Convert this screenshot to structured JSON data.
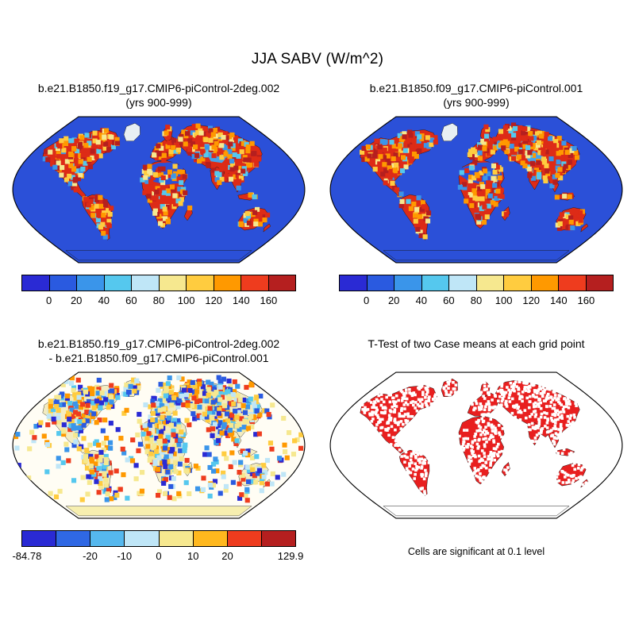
{
  "figure": {
    "title": "JJA SABV (W/m^2)"
  },
  "panels": {
    "top_left": {
      "title_line1": "b.e21.B1850.f19_g17.CMIP6-piControl-2deg.002",
      "title_line2": "(yrs 900-999)"
    },
    "top_right": {
      "title_line1": "b.e21.B1850.f09_g17.CMIP6-piControl.001",
      "title_line2": "(yrs 900-999)"
    },
    "bottom_left": {
      "title_line1": "b.e21.B1850.f19_g17.CMIP6-piControl-2deg.002",
      "title_line2": "- b.e21.B1850.f09_g17.CMIP6-piControl.001"
    },
    "bottom_right": {
      "title": "T-Test of two Case means at each grid point",
      "caption": "Cells are significant at 0.1 level"
    }
  },
  "colorbars": {
    "mean": {
      "segments": [
        "#2a2ad4",
        "#2a5ae0",
        "#3a95ea",
        "#55c8ee",
        "#bfe6f7",
        "#f6e88f",
        "#ffcc3f",
        "#ff9900",
        "#ee3c1e",
        "#b51f1f"
      ],
      "ticks": [
        {
          "label": "0",
          "pos": 0.1
        },
        {
          "label": "20",
          "pos": 0.2
        },
        {
          "label": "40",
          "pos": 0.3
        },
        {
          "label": "60",
          "pos": 0.4
        },
        {
          "label": "80",
          "pos": 0.5
        },
        {
          "label": "100",
          "pos": 0.6
        },
        {
          "label": "120",
          "pos": 0.7
        },
        {
          "label": "140",
          "pos": 0.8
        },
        {
          "label": "160",
          "pos": 0.9
        }
      ]
    },
    "diff": {
      "segments": [
        "#2a2ad4",
        "#2f68e4",
        "#55b8ee",
        "#bfe6f7",
        "#f6e88f",
        "#ffb81e",
        "#ee3c1e",
        "#b51f1f"
      ],
      "ticks": [
        {
          "label": "-84.78",
          "pos": 0.02
        },
        {
          "label": "-20",
          "pos": 0.25
        },
        {
          "label": "-10",
          "pos": 0.375
        },
        {
          "label": "0",
          "pos": 0.5
        },
        {
          "label": "10",
          "pos": 0.625
        },
        {
          "label": "20",
          "pos": 0.75
        },
        {
          "label": "129.9",
          "pos": 0.98
        }
      ]
    }
  },
  "map_styles": {
    "mean": {
      "ocean": "#2b50d8",
      "land": "#dd2b17",
      "coast": "#1a1a1a",
      "antarctica": "#2b50d8",
      "greenland": "#e8eff3",
      "overlays": {
        "sahara": "#2b50d8",
        "centralasia": "#46a4ea"
      },
      "noise": {
        "palette": [
          "#ffcc3f",
          "#ff9900",
          "#ff9900",
          "#f6e88f",
          "#b51f1f",
          "#b51f1f",
          "#55c8ee",
          "#3a95ea",
          "#dd2b17",
          "#dd2b17"
        ],
        "density": 1.1,
        "size": 6
      },
      "noise_exclude": [
        "antarctica",
        "greenland",
        "newzealand"
      ]
    },
    "diff": {
      "ocean": "#fffdf4",
      "land": "#f3ecc0",
      "coast": "#333333",
      "antarctica": "#f7efaf",
      "greenland": "#f3ecc0",
      "overlays": {},
      "noise": {
        "palette": [
          "#2a2ad4",
          "#2a5ae0",
          "#3a95ea",
          "#55c8ee",
          "#bfe6f7",
          "#ffcc3f",
          "#ff9900",
          "#ee3c1e",
          "#f6e88f",
          "#f6e88f"
        ],
        "density": 1.3,
        "size": 6,
        "ocean_density": 0.22
      },
      "noise_exclude": [
        "antarctica"
      ]
    },
    "ttest": {
      "ocean": "#ffffff",
      "land": "#e81f1f",
      "coast": "#111111",
      "antarctica": "#ffffff",
      "overlays": {},
      "speckle": {
        "color": "#ffffff",
        "density": 0.55,
        "size": 3.5
      },
      "noise_exclude": [
        "antarctica"
      ]
    }
  },
  "chart_data": [
    {
      "panel": "top_left",
      "type": "heatmap",
      "title": "b.e21.B1850.f19_g17.CMIP6-piControl-2deg.002",
      "subtitle": "(yrs 900-999)",
      "variable": "JJA SABV",
      "units": "W/m^2",
      "projection": "robinson",
      "colorbar_ticks": [
        0,
        20,
        40,
        60,
        80,
        100,
        120,
        140,
        160
      ],
      "pattern": "Oceans and Antarctica near 0 (blue); most land 100-160+ (orange/red); Sahara and parts of central Asia low (blue); Greenland near 0 (white)"
    },
    {
      "panel": "top_right",
      "type": "heatmap",
      "title": "b.e21.B1850.f09_g17.CMIP6-piControl.001",
      "subtitle": "(yrs 900-999)",
      "variable": "JJA SABV",
      "units": "W/m^2",
      "projection": "robinson",
      "colorbar_ticks": [
        0,
        20,
        40,
        60,
        80,
        100,
        120,
        140,
        160
      ],
      "pattern": "Same spatial pattern as top-left case: blue oceans, predominantly red/orange land, blue Sahara"
    },
    {
      "panel": "bottom_left",
      "type": "heatmap",
      "title": "b.e21.B1850.f19_g17.CMIP6-piControl-2deg.002 - b.e21.B1850.f09_g17.CMIP6-piControl.001",
      "variable": "JJA SABV difference",
      "units": "W/m^2",
      "projection": "robinson",
      "min": -84.78,
      "max": 129.9,
      "colorbar_ticks": [
        -84.78,
        -20,
        -10,
        0,
        10,
        20,
        129.9
      ],
      "pattern": "Noisy mix of positive and negative differences over land and northern oceans; near-zero (pale yellow/white) over southern oceans and Antarctica"
    },
    {
      "panel": "bottom_right",
      "type": "map",
      "title": "T-Test of two Case means at each grid point",
      "note": "Cells are significant at 0.1 level",
      "significant_color": "#e81f1f",
      "pattern": "Nearly all land grid cells significant (solid red) with scattered non-significant white cells; oceans and Antarctica white"
    }
  ]
}
